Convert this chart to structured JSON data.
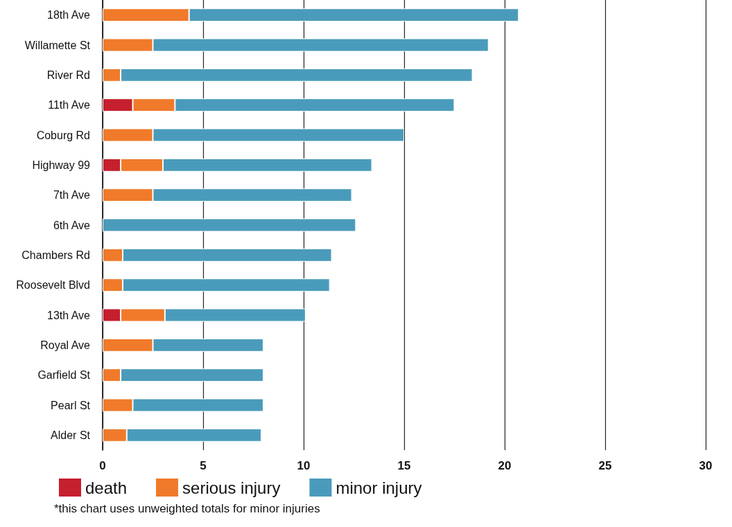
{
  "chart_data": {
    "type": "bar",
    "orientation": "horizontal",
    "stacked": true,
    "categories": [
      "18th Ave",
      "Willamette St",
      "River Rd",
      "11th Ave",
      "Coburg Rd",
      "Highway 99",
      "7th Ave",
      "6th Ave",
      "Chambers Rd",
      "Roosevelt Blvd",
      "13th Ave",
      "Royal Ave",
      "Garfield St",
      "Pearl St",
      "Alder St"
    ],
    "series": [
      {
        "name": "death",
        "color": "#c61f2e",
        "values": [
          null,
          null,
          null,
          1.5,
          null,
          0.9,
          null,
          null,
          null,
          null,
          0.9,
          null,
          null,
          null,
          null
        ]
      },
      {
        "name": "serious injury",
        "color": "#f07a2a",
        "values": [
          4.3,
          2.5,
          0.9,
          2.1,
          2.5,
          2.1,
          2.5,
          null,
          1.0,
          1.0,
          2.2,
          2.5,
          0.9,
          1.5,
          1.2
        ]
      },
      {
        "name": "minor injury",
        "color": "#4a9bbb",
        "values": [
          16.4,
          16.7,
          17.5,
          13.9,
          12.5,
          10.4,
          9.9,
          12.6,
          10.4,
          10.3,
          7.0,
          5.5,
          7.1,
          6.5,
          6.7
        ]
      }
    ],
    "xlim": [
      0,
      30
    ],
    "xticks": [
      0,
      5,
      10,
      15,
      20,
      25,
      30
    ],
    "grid": "x",
    "legend": "bottom left",
    "annotations": [
      "*this chart uses unweighted totals for minor injuries"
    ]
  }
}
